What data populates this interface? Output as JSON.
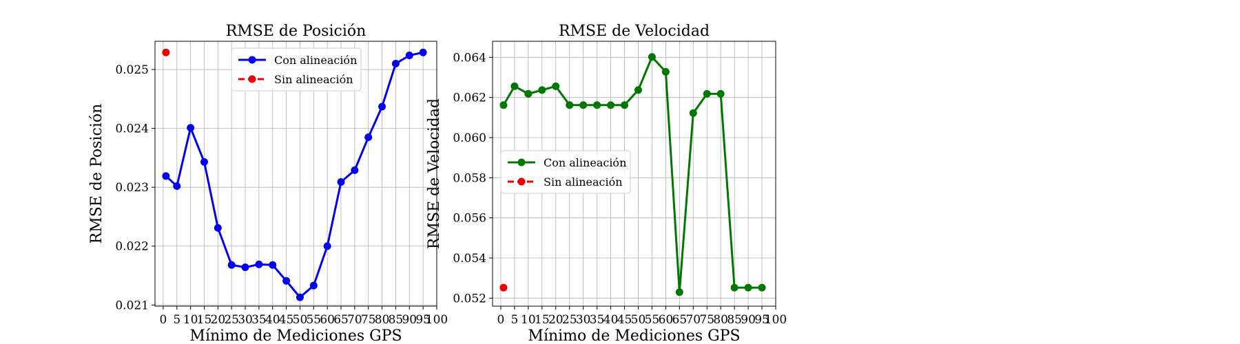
{
  "chart_data": [
    {
      "type": "line",
      "title": "RMSE de Posición",
      "xlabel": "Mínimo de Mediciones GPS",
      "ylabel": "RMSE de Posición",
      "xlim": [
        -3,
        100
      ],
      "ylim": [
        0.02098,
        0.02548
      ],
      "xticks": [
        0,
        5,
        10,
        15,
        20,
        25,
        30,
        35,
        40,
        45,
        50,
        55,
        60,
        65,
        70,
        75,
        80,
        85,
        90,
        95,
        100
      ],
      "xtick_labels": [
        "0",
        "5",
        "10",
        "15",
        "20",
        "25",
        "30",
        "35",
        "40",
        "45",
        "50",
        "55",
        "60",
        "65",
        "70",
        "75",
        "80",
        "85",
        "90",
        "95",
        "100"
      ],
      "yticks": [
        0.021,
        0.022,
        0.023,
        0.024,
        0.025
      ],
      "ytick_labels": [
        "0.021",
        "0.022",
        "0.023",
        "0.024",
        "0.025"
      ],
      "grid": true,
      "legend_position": "top-center",
      "series": [
        {
          "name": "Con alineación",
          "color": "#0000ee",
          "style": "solid",
          "x": [
            1,
            5,
            10,
            15,
            20,
            25,
            30,
            35,
            40,
            45,
            50,
            55,
            60,
            65,
            70,
            75,
            80,
            85,
            90,
            95
          ],
          "y": [
            0.02319,
            0.02302,
            0.02401,
            0.02343,
            0.02231,
            0.02168,
            0.02164,
            0.02169,
            0.02168,
            0.02141,
            0.02113,
            0.02133,
            0.022,
            0.02309,
            0.02329,
            0.02385,
            0.02437,
            0.0251,
            0.02524,
            0.02529
          ]
        },
        {
          "name": "Sin alineación",
          "color": "#ee0000",
          "style": "dashed",
          "x": [
            1
          ],
          "y": [
            0.02529
          ]
        }
      ]
    },
    {
      "type": "line",
      "title": "RMSE de Velocidad",
      "xlabel": "Mínimo de Mediciones GPS",
      "ylabel": "RMSE de Velocidad",
      "xlim": [
        -3,
        100
      ],
      "ylim": [
        0.0516,
        0.0648
      ],
      "xticks": [
        0,
        5,
        10,
        15,
        20,
        25,
        30,
        35,
        40,
        45,
        50,
        55,
        60,
        65,
        70,
        75,
        80,
        85,
        90,
        95,
        100
      ],
      "xtick_labels": [
        "0",
        "5",
        "10",
        "15",
        "20",
        "25",
        "30",
        "35",
        "40",
        "45",
        "50",
        "55",
        "60",
        "65",
        "70",
        "75",
        "80",
        "85",
        "90",
        "95",
        "100"
      ],
      "yticks": [
        0.052,
        0.054,
        0.056,
        0.058,
        0.06,
        0.062,
        0.064
      ],
      "ytick_labels": [
        "0.052",
        "0.054",
        "0.056",
        "0.058",
        "0.060",
        "0.062",
        "0.064"
      ],
      "grid": true,
      "legend_position": "center-left",
      "series": [
        {
          "name": "Con alineación",
          "color": "#007700",
          "style": "solid",
          "x": [
            1,
            5,
            10,
            15,
            20,
            25,
            30,
            35,
            40,
            45,
            50,
            55,
            60,
            65,
            70,
            75,
            80,
            85,
            90,
            95
          ],
          "y": [
            0.06162,
            0.06256,
            0.06218,
            0.06237,
            0.06256,
            0.06162,
            0.06162,
            0.06162,
            0.06162,
            0.06162,
            0.06237,
            0.06402,
            0.06328,
            0.0523,
            0.06122,
            0.06218,
            0.06218,
            0.05252,
            0.05252,
            0.05252
          ]
        },
        {
          "name": "Sin alineación",
          "color": "#ee0000",
          "style": "dashed",
          "x": [
            1
          ],
          "y": [
            0.05252
          ]
        }
      ]
    }
  ]
}
